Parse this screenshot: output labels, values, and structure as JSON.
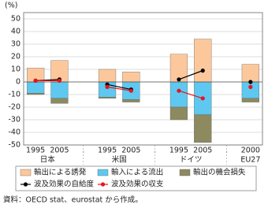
{
  "chart_data": {
    "type": "bar",
    "y_unit": "(%)",
    "categories": [
      "1995",
      "2005",
      ".",
      "1995",
      "2005",
      ".",
      "1995",
      "2005",
      ".",
      "2000"
    ],
    "groups": [
      {
        "label": "日本",
        "span": [
          0,
          1
        ]
      },
      {
        "label": "米国",
        "span": [
          3,
          4
        ]
      },
      {
        "label": "ドイツ",
        "span": [
          6,
          7
        ]
      },
      {
        "label": "EU27",
        "span": [
          9,
          9
        ]
      }
    ],
    "series": [
      {
        "name": "輸出による誘発",
        "type": "bar",
        "color": "#fcc89b",
        "values": [
          11,
          17,
          null,
          10,
          8,
          null,
          22,
          34,
          null,
          14
        ]
      },
      {
        "name": "輸入による流出",
        "type": "bar",
        "color": "#5ec8f0",
        "values": [
          -9,
          -13,
          null,
          -12,
          -14,
          null,
          -20,
          -26,
          null,
          -13
        ]
      },
      {
        "name": "輸出の機会損失",
        "type": "bar",
        "color": "#8c8a5e",
        "values": [
          -1,
          -4,
          null,
          -1,
          -2,
          null,
          -10,
          -22,
          null,
          -3
        ]
      },
      {
        "name": "波及効果の自給度",
        "type": "line",
        "color": "#000000",
        "values": [
          1,
          2,
          null,
          -2,
          -6,
          null,
          2,
          9,
          null,
          0
        ]
      },
      {
        "name": "波及効果の収支",
        "type": "line",
        "color": "#e8141e",
        "values": [
          1,
          1,
          null,
          -4,
          -7,
          null,
          -7,
          -13,
          null,
          -4
        ]
      }
    ],
    "ylim": [
      -50,
      55
    ],
    "yticks": [
      -50,
      -40,
      -30,
      -20,
      -10,
      0,
      10,
      20,
      30,
      40,
      50
    ],
    "grid": true,
    "source": "資料：OECD stat、eurostat から作成。"
  }
}
